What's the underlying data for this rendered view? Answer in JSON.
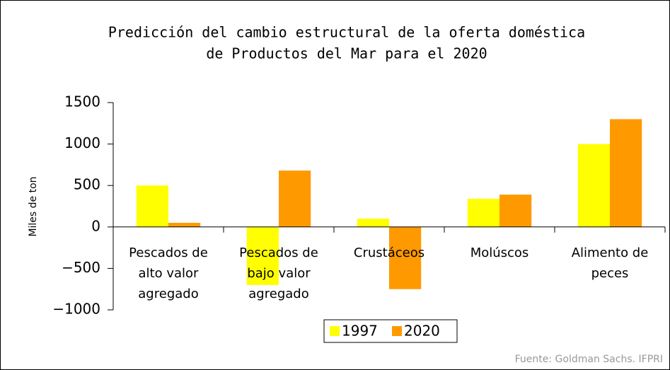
{
  "chart_data": {
    "type": "bar",
    "title": [
      "Predicción del cambio estructural de la oferta doméstica",
      "de Productos del Mar para el 2020"
    ],
    "y_label": "Miles de ton",
    "source": "Fuente: Goldman Sachs. IFPRI",
    "categories": [
      "Pescados de\nalto valor\nagregado",
      "Pescados de\nbajo valor\nagregado",
      "Crustáceos",
      "Molúscos",
      "Alimento de\npeces"
    ],
    "series": [
      {
        "name": "1997",
        "color": "#ffff00",
        "values": [
          500,
          -700,
          100,
          340,
          1000
        ]
      },
      {
        "name": "2020",
        "color": "#ff9900",
        "values": [
          50,
          680,
          -750,
          390,
          1300
        ]
      }
    ],
    "ylim": [
      -1000,
      1500
    ],
    "yticks": [
      {
        "value": -1000,
        "label": "−1000"
      },
      {
        "value": -500,
        "label": "−500"
      },
      0,
      500,
      1000,
      1500
    ],
    "legend": "bottom"
  }
}
